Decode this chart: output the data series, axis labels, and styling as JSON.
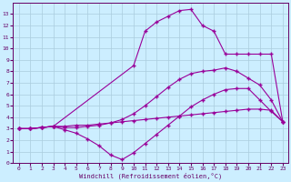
{
  "xlabel": "Windchill (Refroidissement éolien,°C)",
  "bg_color": "#cceeff",
  "grid_color": "#aaccdd",
  "line_color": "#990099",
  "xlim": [
    -0.5,
    23.5
  ],
  "ylim": [
    0,
    14
  ],
  "xticks": [
    0,
    1,
    2,
    3,
    4,
    5,
    6,
    7,
    8,
    9,
    10,
    11,
    12,
    13,
    14,
    15,
    16,
    17,
    18,
    19,
    20,
    21,
    22,
    23
  ],
  "yticks": [
    0,
    1,
    2,
    3,
    4,
    5,
    6,
    7,
    8,
    9,
    10,
    11,
    12,
    13
  ],
  "line1_x": [
    0,
    1,
    2,
    3,
    4,
    5,
    6,
    7,
    8,
    9,
    10,
    11,
    12,
    13,
    14,
    15,
    16,
    17,
    18,
    19,
    20,
    21,
    22,
    23
  ],
  "line1_y": [
    3.0,
    3.0,
    3.1,
    3.2,
    3.2,
    3.3,
    3.3,
    3.4,
    3.5,
    3.6,
    3.7,
    3.8,
    3.9,
    4.0,
    4.1,
    4.2,
    4.3,
    4.4,
    4.5,
    4.6,
    4.7,
    4.7,
    4.6,
    3.6
  ],
  "line2_x": [
    0,
    1,
    2,
    3,
    4,
    5,
    6,
    7,
    8,
    9,
    10,
    11,
    12,
    13,
    14,
    15,
    16,
    17,
    18,
    19,
    20,
    21,
    22,
    23
  ],
  "line2_y": [
    3.0,
    3.0,
    3.1,
    3.2,
    3.1,
    3.1,
    3.2,
    3.3,
    3.5,
    3.8,
    4.3,
    5.0,
    5.8,
    6.6,
    7.3,
    7.8,
    8.0,
    8.1,
    8.3,
    8.0,
    7.4,
    6.8,
    5.5,
    3.6
  ],
  "line4_x": [
    0,
    1,
    2,
    3,
    4,
    5,
    6,
    7,
    8,
    9,
    10,
    11,
    12,
    13,
    14,
    15,
    16,
    17,
    18,
    19,
    20,
    21,
    22,
    23
  ],
  "line4_y": [
    3.0,
    3.0,
    3.1,
    3.2,
    2.9,
    2.6,
    2.1,
    1.5,
    0.7,
    0.3,
    0.9,
    1.7,
    2.5,
    3.3,
    4.1,
    4.9,
    5.5,
    6.0,
    6.4,
    6.5,
    6.5,
    5.5,
    4.5,
    3.6
  ],
  "line5_x": [
    0,
    1,
    2,
    3,
    10,
    11,
    12,
    13,
    14,
    15,
    16,
    17,
    18,
    19,
    20,
    21,
    22,
    23
  ],
  "line5_y": [
    3.0,
    3.0,
    3.1,
    3.2,
    8.5,
    11.5,
    12.3,
    12.8,
    13.3,
    13.4,
    12.0,
    11.5,
    9.5,
    9.5,
    9.5,
    9.5,
    9.5,
    3.6
  ]
}
